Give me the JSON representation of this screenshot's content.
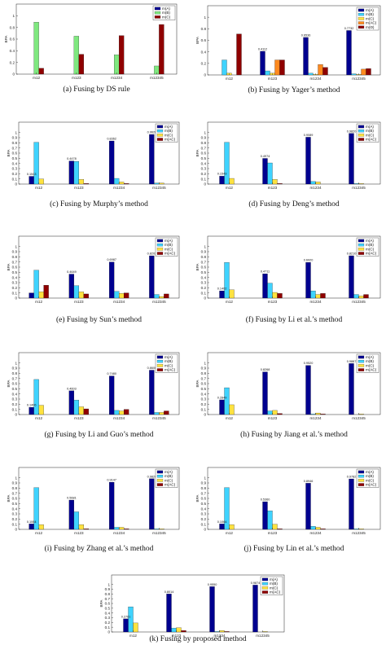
{
  "colors": {
    "mA": "#00008f",
    "mB": "#3fd3ff",
    "mC": "#ffe23f",
    "mAC": "#8f0000",
    "dsB": "#7fe87f",
    "yOrange": "#ff8a1f"
  },
  "chart_data": [
    {
      "type": "bar",
      "caption": "(a)  Fusing by DS rule",
      "ylabel": "BPA",
      "ylim": [
        0,
        1.2
      ],
      "yticks": [
        "0",
        "0.2",
        "0.4",
        "0.6",
        "0.8",
        "1"
      ],
      "categories": [
        "m12",
        "m123",
        "m1234",
        "m12345"
      ],
      "legend": [
        "m(A)",
        "m(B)",
        "m(C)"
      ],
      "legend_position": "top-right",
      "series": [
        {
          "name": "m(A)",
          "color": "#00008f",
          "values": [
            0,
            0,
            0,
            0
          ]
        },
        {
          "name": "m(B)",
          "color": "#7fe87f",
          "values": [
            0.89,
            0.65,
            0.33,
            0.14
          ]
        },
        {
          "name": "m(C)",
          "color": "#8f0000",
          "values": [
            0.1,
            0.34,
            0.66,
            0.85
          ]
        }
      ],
      "data_labels": []
    },
    {
      "type": "bar",
      "caption": "(b)  Fusing by Yager’s method",
      "ylabel": "BPA",
      "ylim": [
        0,
        1.2
      ],
      "yticks": [
        "0",
        "0.2",
        "0.4",
        "0.6",
        "0.8",
        "1"
      ],
      "categories": [
        "m12",
        "m123",
        "m1234",
        "m12345"
      ],
      "legend": [
        "m(A)",
        "m(B)",
        "m(C)",
        "m(AC)",
        "m(Θ)"
      ],
      "legend_position": "top-right",
      "series": [
        {
          "name": "m(A)",
          "color": "#00008f",
          "values": [
            0,
            0.41,
            0.65,
            0.77
          ]
        },
        {
          "name": "m(B)",
          "color": "#3fd3ff",
          "values": [
            0.26,
            0.07,
            0.03,
            0.02
          ]
        },
        {
          "name": "m(C)",
          "color": "#ffe23f",
          "values": [
            0.03,
            0.03,
            0.01,
            0.01
          ]
        },
        {
          "name": "m(AC)",
          "color": "#ff8a1f",
          "values": [
            0,
            0.26,
            0.18,
            0.1
          ]
        },
        {
          "name": "m(Θ)",
          "color": "#8f0000",
          "values": [
            0.71,
            0.26,
            0.13,
            0.11
          ]
        }
      ],
      "data_labels": [
        {
          "category": 1,
          "text": "0.4112"
        },
        {
          "category": 2,
          "text": "0.6536"
        },
        {
          "category": 3,
          "text": "0.7732"
        }
      ]
    },
    {
      "type": "bar",
      "caption": "(c)  Fusing by Murphy’s method",
      "ylabel": "BPA",
      "ylim": [
        0,
        1.2
      ],
      "yticks": [
        "0",
        "0.1",
        "0.2",
        "0.3",
        "0.4",
        "0.5",
        "0.6",
        "0.7",
        "0.8",
        "0.9",
        "1"
      ],
      "categories": [
        "m12",
        "m123",
        "m1234",
        "m12345"
      ],
      "legend": [
        "m(A)",
        "m(B)",
        "m(C)",
        "m(AC)"
      ],
      "legend_position": "top-right",
      "series": [
        {
          "name": "m(A)",
          "color": "#00008f",
          "values": [
            0.15,
            0.4478,
            0.8362,
            0.962
          ]
        },
        {
          "name": "m(B)",
          "color": "#3fd3ff",
          "values": [
            0.81,
            0.44,
            0.11,
            0.02
          ]
        },
        {
          "name": "m(C)",
          "color": "#ffe23f",
          "values": [
            0.1,
            0.09,
            0.04,
            0.02
          ]
        },
        {
          "name": "m(AC)",
          "color": "#8f0000",
          "values": [
            0,
            0.01,
            0.01,
            0
          ]
        }
      ],
      "data_labels": [
        {
          "category": 0,
          "text": "0.1543"
        },
        {
          "category": 1,
          "text": "0.4478"
        },
        {
          "category": 2,
          "text": "0.8362"
        },
        {
          "category": 3,
          "text": "0.9620"
        }
      ]
    },
    {
      "type": "bar",
      "caption": "(d)  Fusing by Deng’s method",
      "ylabel": "BPA",
      "ylim": [
        0,
        1.2
      ],
      "yticks": [
        "0",
        "0.1",
        "0.2",
        "0.3",
        "0.4",
        "0.5",
        "0.6",
        "0.7",
        "0.8",
        "0.9",
        "1"
      ],
      "categories": [
        "m12",
        "m123",
        "m1234",
        "m12345"
      ],
      "legend": [
        "m(A)",
        "m(B)",
        "m(C)",
        "m(AC)"
      ],
      "legend_position": "top-right",
      "series": [
        {
          "name": "m(A)",
          "color": "#00008f",
          "values": [
            0.1543,
            0.4974,
            0.9089,
            0.982
          ]
        },
        {
          "name": "m(B)",
          "color": "#3fd3ff",
          "values": [
            0.81,
            0.41,
            0.05,
            0.01
          ]
        },
        {
          "name": "m(C)",
          "color": "#ffe23f",
          "values": [
            0.11,
            0.09,
            0.04,
            0.01
          ]
        },
        {
          "name": "m(AC)",
          "color": "#8f0000",
          "values": [
            0,
            0.01,
            0,
            0
          ]
        }
      ],
      "data_labels": [
        {
          "category": 0,
          "text": "0.1543"
        },
        {
          "category": 1,
          "text": "0.4974"
        },
        {
          "category": 2,
          "text": "0.9089"
        },
        {
          "category": 3,
          "text": "0.9820"
        }
      ]
    },
    {
      "type": "bar",
      "caption": "(e)  Fusing by Sun’s method",
      "ylabel": "BPA",
      "ylim": [
        0,
        1.2
      ],
      "yticks": [
        "0",
        "0.1",
        "0.2",
        "0.3",
        "0.4",
        "0.5",
        "0.6",
        "0.7",
        "0.8",
        "0.9",
        "1"
      ],
      "categories": [
        "m12",
        "m123",
        "m1234",
        "m12345"
      ],
      "legend": [
        "m(A)",
        "m(B)",
        "m(C)",
        "m(AC)"
      ],
      "legend_position": "top-right",
      "series": [
        {
          "name": "m(A)",
          "color": "#00008f",
          "values": [
            0.1,
            0.4649,
            0.6987,
            0.8202
          ]
        },
        {
          "name": "m(B)",
          "color": "#3fd3ff",
          "values": [
            0.54,
            0.24,
            0.13,
            0.07
          ]
        },
        {
          "name": "m(C)",
          "color": "#ffe23f",
          "values": [
            0.12,
            0.12,
            0.09,
            0.03
          ]
        },
        {
          "name": "m(AC)",
          "color": "#8f0000",
          "values": [
            0.25,
            0.08,
            0.1,
            0.08
          ]
        }
      ],
      "data_labels": [
        {
          "category": 1,
          "text": "0.4649"
        },
        {
          "category": 2,
          "text": "0.6987"
        },
        {
          "category": 3,
          "text": "0.8202"
        }
      ]
    },
    {
      "type": "bar",
      "caption": "(f)  Fusing by Li et al.’s method",
      "ylabel": "BPA",
      "ylim": [
        0,
        1.2
      ],
      "yticks": [
        "0",
        "0.1",
        "0.2",
        "0.3",
        "0.4",
        "0.5",
        "0.6",
        "0.7",
        "0.8",
        "0.9",
        "1"
      ],
      "categories": [
        "m12",
        "m123",
        "m1234",
        "m12345"
      ],
      "legend": [
        "m(A)",
        "m(B)",
        "m(C)",
        "m(AC)"
      ],
      "legend_position": "top-right",
      "series": [
        {
          "name": "m(A)",
          "color": "#00008f",
          "values": [
            0.1402,
            0.4711,
            0.692,
            0.821
          ]
        },
        {
          "name": "m(B)",
          "color": "#3fd3ff",
          "values": [
            0.69,
            0.29,
            0.14,
            0.07
          ]
        },
        {
          "name": "m(C)",
          "color": "#ffe23f",
          "values": [
            0.16,
            0.11,
            0.07,
            0.04
          ]
        },
        {
          "name": "m(AC)",
          "color": "#8f0000",
          "values": [
            0,
            0.09,
            0.09,
            0.07
          ]
        }
      ],
      "data_labels": [
        {
          "category": 0,
          "text": "0.1402"
        },
        {
          "category": 1,
          "text": "0.4711"
        },
        {
          "category": 2,
          "text": "0.6920"
        },
        {
          "category": 3,
          "text": "0.8210"
        }
      ]
    },
    {
      "type": "bar",
      "caption": "(g)  Fusing by Li and Guo’s method",
      "ylabel": "BPA",
      "ylim": [
        0,
        1.2
      ],
      "yticks": [
        "0",
        "0.1",
        "0.2",
        "0.3",
        "0.4",
        "0.5",
        "0.6",
        "0.7",
        "0.8",
        "0.9",
        "1"
      ],
      "categories": [
        "m12",
        "m123",
        "m1234",
        "m12345"
      ],
      "legend": [
        "m(A)",
        "m(B)",
        "m(C)",
        "m(AC)"
      ],
      "legend_position": "top-right",
      "series": [
        {
          "name": "m(A)",
          "color": "#00008f",
          "values": [
            0.1406,
            0.4603,
            0.748,
            0.8606
          ]
        },
        {
          "name": "m(B)",
          "color": "#3fd3ff",
          "values": [
            0.68,
            0.28,
            0.08,
            0.04
          ]
        },
        {
          "name": "m(C)",
          "color": "#ffe23f",
          "values": [
            0.18,
            0.15,
            0.07,
            0.04
          ]
        },
        {
          "name": "m(AC)",
          "color": "#8f0000",
          "values": [
            0,
            0.11,
            0.1,
            0.07
          ]
        }
      ],
      "data_labels": [
        {
          "category": 0,
          "text": "0.1406"
        },
        {
          "category": 1,
          "text": "0.4603"
        },
        {
          "category": 2,
          "text": "0.7480"
        },
        {
          "category": 3,
          "text": "0.8606"
        }
      ]
    },
    {
      "type": "bar",
      "caption": "(h)  Fusing by Jiang et al.’s method",
      "ylabel": "BPA",
      "ylim": [
        0,
        1.2
      ],
      "yticks": [
        "0",
        "0.1",
        "0.2",
        "0.3",
        "0.4",
        "0.5",
        "0.6",
        "0.7",
        "0.8",
        "0.9",
        "1"
      ],
      "categories": [
        "m12",
        "m123",
        "m1234",
        "m12345"
      ],
      "legend": [
        "m(A)",
        "m(B)",
        "m(C)",
        "m(AC)"
      ],
      "legend_position": "top-right",
      "series": [
        {
          "name": "m(A)",
          "color": "#00008f",
          "values": [
            0.2849,
            0.8268,
            0.952,
            0.9887
          ]
        },
        {
          "name": "m(B)",
          "color": "#3fd3ff",
          "values": [
            0.52,
            0.07,
            0.01,
            0
          ]
        },
        {
          "name": "m(C)",
          "color": "#ffe23f",
          "values": [
            0.19,
            0.08,
            0.03,
            0.01
          ]
        },
        {
          "name": "m(AC)",
          "color": "#8f0000",
          "values": [
            0,
            0.02,
            0.01,
            0
          ]
        }
      ],
      "data_labels": [
        {
          "category": 0,
          "text": "0.2849"
        },
        {
          "category": 1,
          "text": "0.8268"
        },
        {
          "category": 2,
          "text": "0.9520"
        },
        {
          "category": 3,
          "text": "0.9887"
        }
      ]
    },
    {
      "type": "bar",
      "caption": "(i)  Fusing by Zhang et al.’s method",
      "ylabel": "BPA",
      "ylim": [
        0,
        1.2
      ],
      "yticks": [
        "0",
        "0.1",
        "0.2",
        "0.3",
        "0.4",
        "0.5",
        "0.6",
        "0.7",
        "0.8",
        "0.9",
        "1"
      ],
      "categories": [
        "m12",
        "m123",
        "m1234",
        "m12345"
      ],
      "legend": [
        "m(A)",
        "m(B)",
        "m(C)",
        "m(AC)"
      ],
      "legend_position": "top-right",
      "series": [
        {
          "name": "m(A)",
          "color": "#00008f",
          "values": [
            0.1064,
            0.5681,
            0.9147,
            0.982
          ]
        },
        {
          "name": "m(B)",
          "color": "#3fd3ff",
          "values": [
            0.81,
            0.34,
            0.04,
            0.01
          ]
        },
        {
          "name": "m(C)",
          "color": "#ffe23f",
          "values": [
            0.09,
            0.09,
            0.04,
            0.01
          ]
        },
        {
          "name": "m(AC)",
          "color": "#8f0000",
          "values": [
            0,
            0.01,
            0.01,
            0
          ]
        }
      ],
      "data_labels": [
        {
          "category": 0,
          "text": "0.1064"
        },
        {
          "category": 1,
          "text": "0.5681"
        },
        {
          "category": 2,
          "text": "0.9147"
        },
        {
          "category": 3,
          "text": "0.9820"
        }
      ]
    },
    {
      "type": "bar",
      "caption": "(j)  Fusing by Lin et al.’s method",
      "ylabel": "BPA",
      "ylim": [
        0,
        1.2
      ],
      "yticks": [
        "0",
        "0.1",
        "0.2",
        "0.3",
        "0.4",
        "0.5",
        "0.6",
        "0.7",
        "0.8",
        "0.9",
        "1"
      ],
      "categories": [
        "m12",
        "m123",
        "m1234",
        "m12345"
      ],
      "legend": [
        "m(A)",
        "m(B)",
        "m(C)",
        "m(AC)"
      ],
      "legend_position": "top-right",
      "series": [
        {
          "name": "m(A)",
          "color": "#00008f",
          "values": [
            0.1064,
            0.536,
            0.8946,
            0.9782
          ]
        },
        {
          "name": "m(B)",
          "color": "#3fd3ff",
          "values": [
            0.81,
            0.36,
            0.06,
            0.01
          ]
        },
        {
          "name": "m(C)",
          "color": "#ffe23f",
          "values": [
            0.09,
            0.1,
            0.04,
            0.01
          ]
        },
        {
          "name": "m(AC)",
          "color": "#8f0000",
          "values": [
            0,
            0.01,
            0.01,
            0
          ]
        }
      ],
      "data_labels": [
        {
          "category": 0,
          "text": "0.1064"
        },
        {
          "category": 1,
          "text": "0.5360"
        },
        {
          "category": 2,
          "text": "0.8946"
        },
        {
          "category": 3,
          "text": "0.9782"
        }
      ]
    },
    {
      "type": "bar",
      "caption": "(k)  Fusing by proposed method",
      "ylabel": "BPA",
      "ylim": [
        0,
        1.2
      ],
      "yticks": [
        "0",
        "0.1",
        "0.2",
        "0.3",
        "0.4",
        "0.5",
        "0.6",
        "0.7",
        "0.8",
        "0.9",
        "1"
      ],
      "categories": [
        "m12",
        "m123",
        "m1234",
        "m12345"
      ],
      "legend": [
        "m(A)",
        "m(B)",
        "m(C)",
        "m(AC)"
      ],
      "legend_position": "top-right",
      "series": [
        {
          "name": "m(A)",
          "color": "#00008f",
          "values": [
            0.2761,
            0.8014,
            0.955,
            0.9874
          ]
        },
        {
          "name": "m(B)",
          "color": "#3fd3ff",
          "values": [
            0.53,
            0.08,
            0.01,
            0
          ]
        },
        {
          "name": "m(C)",
          "color": "#ffe23f",
          "values": [
            0.19,
            0.09,
            0.03,
            0.01
          ]
        },
        {
          "name": "m(AC)",
          "color": "#8f0000",
          "values": [
            0,
            0.03,
            0.01,
            0
          ]
        }
      ],
      "data_labels": [
        {
          "category": 0,
          "text": "0.2761"
        },
        {
          "category": 1,
          "text": "0.8014"
        },
        {
          "category": 2,
          "text": "0.9550"
        },
        {
          "category": 3,
          "text": "0.9874"
        }
      ]
    }
  ]
}
